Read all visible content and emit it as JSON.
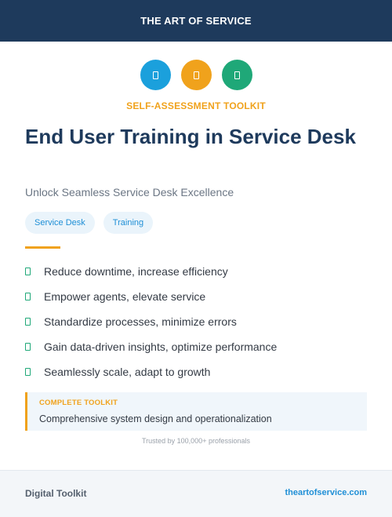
{
  "header": {
    "brand": "THE ART OF SERVICE",
    "background_color": "#1e3a5c"
  },
  "icons": [
    {
      "name": "document-icon",
      "color": "#1ba0dc"
    },
    {
      "name": "document-icon",
      "color": "#f0a21c"
    },
    {
      "name": "document-icon",
      "color": "#1fa878"
    }
  ],
  "kicker": "SELF-ASSESSMENT TOOLKIT",
  "title": "End User Training in Service Desk",
  "subtitle": "Unlock Seamless Service Desk Excellence",
  "tags": [
    "Service Desk",
    "Training"
  ],
  "bullets": [
    "Reduce downtime, increase efficiency",
    "Empower agents, elevate service",
    "Standardize processes, minimize errors",
    "Gain data-driven insights, optimize performance",
    "Seamlessly scale, adapt to growth"
  ],
  "callout": {
    "label": "COMPLETE TOOLKIT",
    "text": "Comprehensive system design and operationalization"
  },
  "trust_line": "Trusted by 100,000+ professionals",
  "footer": {
    "left": "Digital Toolkit",
    "right": "theartofservice.com"
  },
  "colors": {
    "accent_orange": "#f0a21c",
    "accent_blue": "#1f8fd6",
    "accent_green": "#1fa878",
    "navy": "#1e3a5c"
  }
}
